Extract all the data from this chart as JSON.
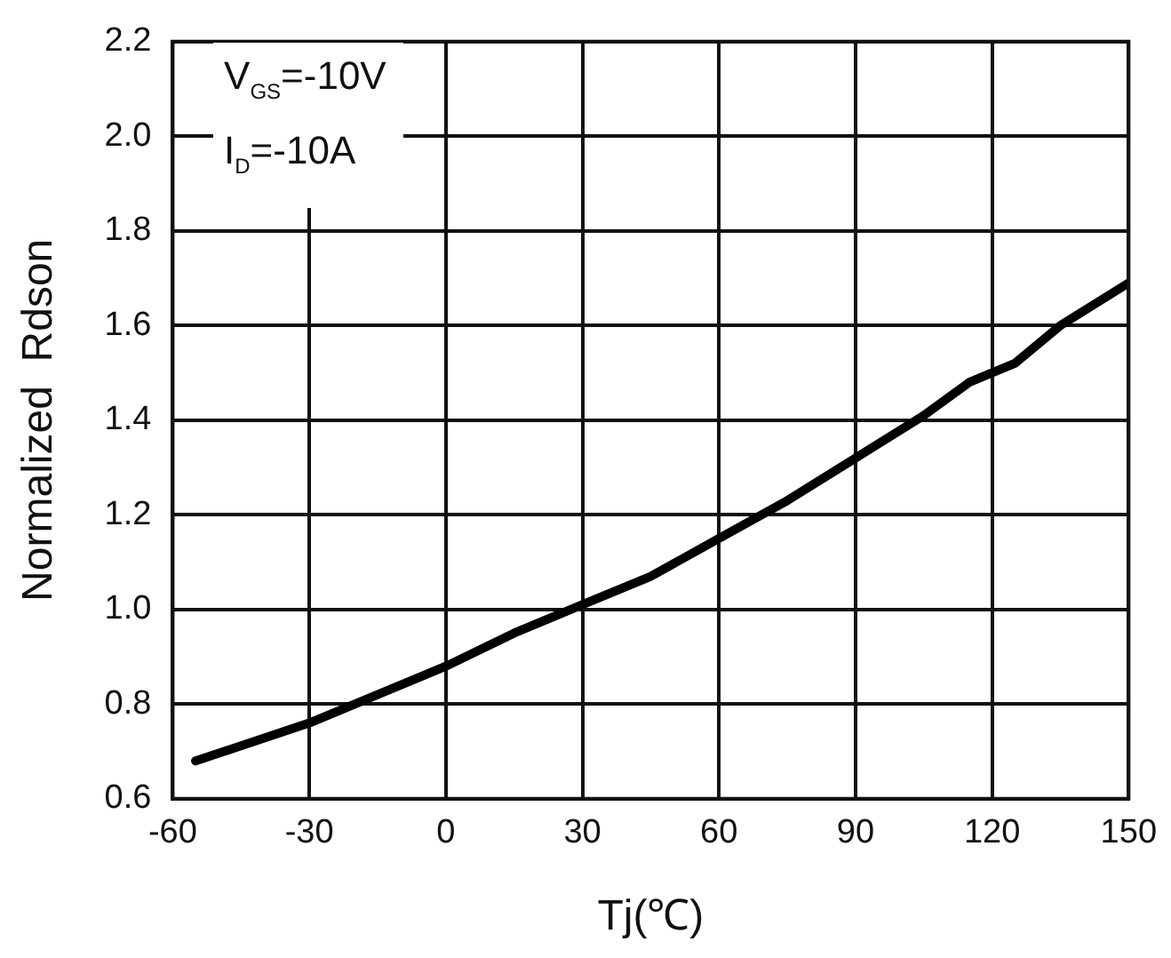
{
  "chart_data": {
    "type": "line",
    "xlabel": "Tj(℃)",
    "ylabel": "Normalized  Rdson",
    "annotations": [
      "V$_{GS}$=-10V",
      "I$_{D}$=-10A"
    ],
    "x": [
      -55,
      -30,
      -15,
      0,
      15,
      30,
      45,
      60,
      75,
      90,
      105,
      115,
      125,
      135,
      150
    ],
    "series": [
      {
        "color": "#000000",
        "values": [
          0.68,
          0.76,
          0.82,
          0.88,
          0.95,
          1.01,
          1.07,
          1.15,
          1.23,
          1.32,
          1.41,
          1.48,
          1.52,
          1.6,
          1.69
        ]
      }
    ],
    "xlim": [
      -60,
      150
    ],
    "xticks": [
      -60,
      -30,
      0,
      30,
      60,
      90,
      120,
      150
    ],
    "ylim": [
      0.6,
      2.2
    ],
    "yticks": [
      0.6,
      0.8,
      {
        "value": 1,
        "label": "1.0"
      },
      1.2,
      1.4,
      1.6,
      1.8,
      {
        "value": 2,
        "label": "2.0"
      },
      2.2
    ],
    "grid": true,
    "legend": false,
    "marker": "none",
    "line_style": "solid"
  }
}
